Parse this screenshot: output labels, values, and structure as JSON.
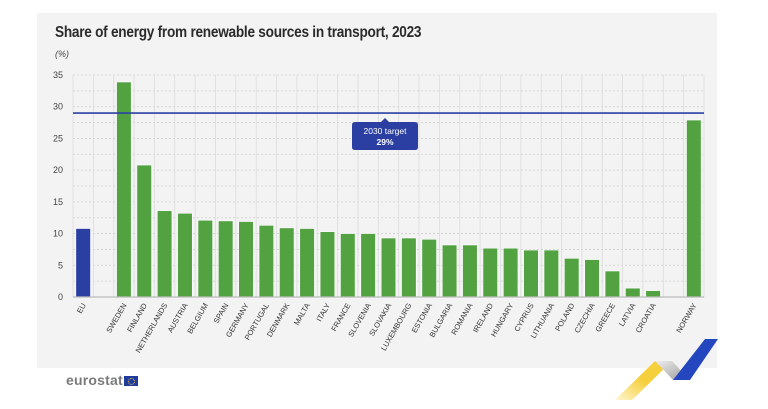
{
  "chart_data": {
    "type": "bar",
    "title": "Share of energy from renewable sources in transport, 2023",
    "unit_label": "(%)",
    "xlabel": "",
    "ylabel": "(%)",
    "ylim": [
      0,
      35
    ],
    "yticks": [
      0,
      5,
      10,
      15,
      20,
      25,
      30,
      35
    ],
    "grid": true,
    "categories": [
      "EU",
      "SWEDEN",
      "FINLAND",
      "NETHERLANDS",
      "AUSTRIA",
      "BELGIUM",
      "SPAIN",
      "GERMANY",
      "PORTUGAL",
      "DENMARK",
      "MALTA",
      "ITALY",
      "FRANCE",
      "SLOVENIA",
      "SLOVAKIA",
      "LUXEMBOURG",
      "ESTONIA",
      "BULGARIA",
      "ROMANIA",
      "IRELAND",
      "HUNGARY",
      "CYPRUS",
      "LITHUANIA",
      "POLAND",
      "CZECHIA",
      "GREECE",
      "LATVIA",
      "CROATIA",
      "NORWAY"
    ],
    "values": [
      10.8,
      33.9,
      20.8,
      13.6,
      13.2,
      12.1,
      12.0,
      11.9,
      11.3,
      10.9,
      10.8,
      10.3,
      10.0,
      10.0,
      9.3,
      9.3,
      9.1,
      8.2,
      8.2,
      7.7,
      7.7,
      7.4,
      7.4,
      6.1,
      5.9,
      4.1,
      1.4,
      1.0,
      27.9
    ],
    "gaps_after": [
      "EU",
      "CROATIA"
    ],
    "highlight": {
      "EU": "#2b3fa3"
    },
    "bar_color": "#52a242",
    "target_line": {
      "value": 29,
      "label_line1": "2030 target",
      "label_line2": "29%",
      "color": "#2b3fa3"
    }
  },
  "footer": {
    "brand": "eurostat"
  }
}
